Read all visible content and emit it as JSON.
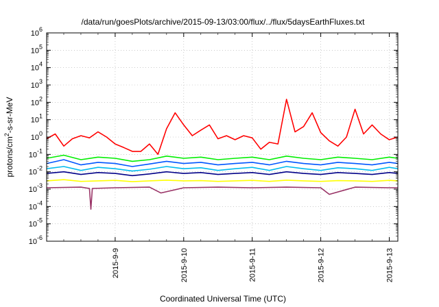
{
  "chart_data": {
    "type": "line",
    "title": "/data/run/goesPlots/archive/2015-09-13/03:00/flux/../flux/5daysEarthFluxes.txt",
    "xlabel": "Coordinated Universal Time (UTC)",
    "ylabel": {
      "base": "protons/cm",
      "sup": "2",
      "rest": "-s-sr-MeV"
    },
    "yscale": "log",
    "ylim_exp": [
      -6,
      6
    ],
    "y_tick_exps": [
      -6,
      -5,
      -4,
      -3,
      -2,
      -1,
      0,
      1,
      2,
      3,
      4,
      5,
      6
    ],
    "xlim": [
      "2015-09-08T00:00",
      "2015-09-13T03:00"
    ],
    "x_ticks": [
      {
        "label": "2015-9-9",
        "date": "2015-09-09T00:00"
      },
      {
        "label": "2015-9-10",
        "date": "2015-09-10T00:00"
      },
      {
        "label": "2015-9-11",
        "date": "2015-09-11T00:00"
      },
      {
        "label": "2015-9-12",
        "date": "2015-09-12T00:00"
      },
      {
        "label": "2015-9-13",
        "date": "2015-09-13T00:00"
      }
    ],
    "grid": true,
    "series": [
      {
        "color": "#ff0000",
        "x": [
          "2015-09-08T00:00",
          "2015-09-08T03:00",
          "2015-09-08T06:00",
          "2015-09-08T09:00",
          "2015-09-08T12:00",
          "2015-09-08T15:00",
          "2015-09-08T18:00",
          "2015-09-08T21:00",
          "2015-09-09T00:00",
          "2015-09-09T03:00",
          "2015-09-09T06:00",
          "2015-09-09T09:00",
          "2015-09-09T12:00",
          "2015-09-09T15:00",
          "2015-09-09T18:00",
          "2015-09-09T21:00",
          "2015-09-10T00:00",
          "2015-09-10T03:00",
          "2015-09-10T06:00",
          "2015-09-10T09:00",
          "2015-09-10T12:00",
          "2015-09-10T15:00",
          "2015-09-10T18:00",
          "2015-09-10T21:00",
          "2015-09-11T00:00",
          "2015-09-11T03:00",
          "2015-09-11T06:00",
          "2015-09-11T09:00",
          "2015-09-11T12:00",
          "2015-09-11T15:00",
          "2015-09-11T18:00",
          "2015-09-11T21:00",
          "2015-09-12T00:00",
          "2015-09-12T03:00",
          "2015-09-12T06:00",
          "2015-09-12T09:00",
          "2015-09-12T12:00",
          "2015-09-12T15:00",
          "2015-09-12T18:00",
          "2015-09-12T21:00",
          "2015-09-13T00:00",
          "2015-09-13T03:00"
        ],
        "y": [
          0.8,
          1.5,
          0.3,
          0.8,
          1.2,
          0.9,
          2.0,
          1.0,
          0.4,
          0.25,
          0.15,
          0.15,
          0.4,
          0.1,
          3.0,
          25,
          5.0,
          1.2,
          2.5,
          5,
          0.8,
          1.2,
          0.7,
          1.2,
          0.9,
          0.2,
          0.5,
          0.4,
          150,
          2.0,
          4.0,
          25,
          1.8,
          0.6,
          0.3,
          1.0,
          40,
          1.5,
          5,
          1.5,
          0.7,
          1.0
        ]
      },
      {
        "color": "#00ee00",
        "x": [
          "2015-09-08T00:00",
          "2015-09-08T06:00",
          "2015-09-08T12:00",
          "2015-09-08T18:00",
          "2015-09-09T00:00",
          "2015-09-09T06:00",
          "2015-09-09T12:00",
          "2015-09-09T18:00",
          "2015-09-10T00:00",
          "2015-09-10T06:00",
          "2015-09-10T12:00",
          "2015-09-10T18:00",
          "2015-09-11T00:00",
          "2015-09-11T06:00",
          "2015-09-11T12:00",
          "2015-09-11T18:00",
          "2015-09-12T00:00",
          "2015-09-12T06:00",
          "2015-09-12T12:00",
          "2015-09-12T18:00",
          "2015-09-13T00:00",
          "2015-09-13T03:00"
        ],
        "y": [
          0.06,
          0.09,
          0.05,
          0.07,
          0.06,
          0.04,
          0.05,
          0.08,
          0.06,
          0.07,
          0.05,
          0.06,
          0.07,
          0.05,
          0.08,
          0.06,
          0.05,
          0.07,
          0.06,
          0.05,
          0.07,
          0.06
        ]
      },
      {
        "color": "#0055ff",
        "x": [
          "2015-09-08T00:00",
          "2015-09-08T06:00",
          "2015-09-08T12:00",
          "2015-09-08T18:00",
          "2015-09-09T00:00",
          "2015-09-09T06:00",
          "2015-09-09T12:00",
          "2015-09-09T18:00",
          "2015-09-10T00:00",
          "2015-09-10T06:00",
          "2015-09-10T12:00",
          "2015-09-10T18:00",
          "2015-09-11T00:00",
          "2015-09-11T06:00",
          "2015-09-11T12:00",
          "2015-09-11T18:00",
          "2015-09-12T00:00",
          "2015-09-12T06:00",
          "2015-09-12T12:00",
          "2015-09-12T18:00",
          "2015-09-13T00:00",
          "2015-09-13T03:00"
        ],
        "y": [
          0.03,
          0.05,
          0.025,
          0.035,
          0.03,
          0.02,
          0.028,
          0.04,
          0.03,
          0.035,
          0.025,
          0.03,
          0.035,
          0.025,
          0.04,
          0.03,
          0.025,
          0.035,
          0.03,
          0.025,
          0.035,
          0.03
        ]
      },
      {
        "color": "#00bbee",
        "x": [
          "2015-09-08T00:00",
          "2015-09-08T06:00",
          "2015-09-08T12:00",
          "2015-09-08T18:00",
          "2015-09-09T00:00",
          "2015-09-09T06:00",
          "2015-09-09T12:00",
          "2015-09-09T18:00",
          "2015-09-10T00:00",
          "2015-09-10T06:00",
          "2015-09-10T12:00",
          "2015-09-10T18:00",
          "2015-09-11T00:00",
          "2015-09-11T06:00",
          "2015-09-11T12:00",
          "2015-09-11T18:00",
          "2015-09-12T00:00",
          "2015-09-12T06:00",
          "2015-09-12T12:00",
          "2015-09-12T18:00",
          "2015-09-13T00:00",
          "2015-09-13T03:00"
        ],
        "y": [
          0.015,
          0.02,
          0.012,
          0.018,
          0.015,
          0.011,
          0.014,
          0.02,
          0.015,
          0.017,
          0.012,
          0.015,
          0.018,
          0.012,
          0.02,
          0.015,
          0.012,
          0.017,
          0.015,
          0.012,
          0.018,
          0.015
        ]
      },
      {
        "color": "#000088",
        "x": [
          "2015-09-08T00:00",
          "2015-09-08T06:00",
          "2015-09-08T12:00",
          "2015-09-08T18:00",
          "2015-09-09T00:00",
          "2015-09-09T06:00",
          "2015-09-09T12:00",
          "2015-09-09T18:00",
          "2015-09-10T00:00",
          "2015-09-10T06:00",
          "2015-09-10T12:00",
          "2015-09-10T18:00",
          "2015-09-11T00:00",
          "2015-09-11T06:00",
          "2015-09-11T12:00",
          "2015-09-11T18:00",
          "2015-09-12T00:00",
          "2015-09-12T06:00",
          "2015-09-12T12:00",
          "2015-09-12T18:00",
          "2015-09-13T00:00",
          "2015-09-13T03:00"
        ],
        "y": [
          0.008,
          0.01,
          0.007,
          0.009,
          0.008,
          0.006,
          0.0075,
          0.01,
          0.008,
          0.009,
          0.007,
          0.008,
          0.009,
          0.007,
          0.01,
          0.008,
          0.007,
          0.009,
          0.008,
          0.007,
          0.009,
          0.008
        ]
      },
      {
        "color": "#ffff00",
        "x": [
          "2015-09-08T00:00",
          "2015-09-08T06:00",
          "2015-09-08T12:00",
          "2015-09-08T18:00",
          "2015-09-09T00:00",
          "2015-09-09T06:00",
          "2015-09-09T12:00",
          "2015-09-09T18:00",
          "2015-09-10T00:00",
          "2015-09-10T06:00",
          "2015-09-10T12:00",
          "2015-09-10T18:00",
          "2015-09-11T00:00",
          "2015-09-11T06:00",
          "2015-09-11T12:00",
          "2015-09-11T18:00",
          "2015-09-12T00:00",
          "2015-09-12T06:00",
          "2015-09-12T12:00",
          "2015-09-12T18:00",
          "2015-09-13T00:00",
          "2015-09-13T03:00"
        ],
        "y": [
          0.003,
          0.0035,
          0.0028,
          0.003,
          0.0032,
          0.0027,
          0.003,
          0.0033,
          0.003,
          0.0031,
          0.0028,
          0.003,
          0.0032,
          0.0028,
          0.0033,
          0.003,
          0.0028,
          0.0031,
          0.003,
          0.0028,
          0.0032,
          0.003
        ]
      },
      {
        "color": "#993366",
        "x": [
          "2015-09-08T00:00",
          "2015-09-08T12:00",
          "2015-09-08T15:00",
          "2015-09-08T15:30",
          "2015-09-08T16:00",
          "2015-09-09T00:00",
          "2015-09-09T12:00",
          "2015-09-09T16:00",
          "2015-09-10T00:00",
          "2015-09-10T12:00",
          "2015-09-11T00:00",
          "2015-09-11T12:00",
          "2015-09-12T00:00",
          "2015-09-12T03:00",
          "2015-09-12T12:00",
          "2015-09-13T00:00",
          "2015-09-13T03:00"
        ],
        "y": [
          0.0012,
          0.0013,
          0.0011,
          7e-05,
          0.0011,
          0.0012,
          0.0013,
          0.0006,
          0.0012,
          0.0013,
          0.0012,
          0.0013,
          0.0012,
          0.0005,
          0.0013,
          0.0012,
          0.0012
        ]
      }
    ]
  }
}
